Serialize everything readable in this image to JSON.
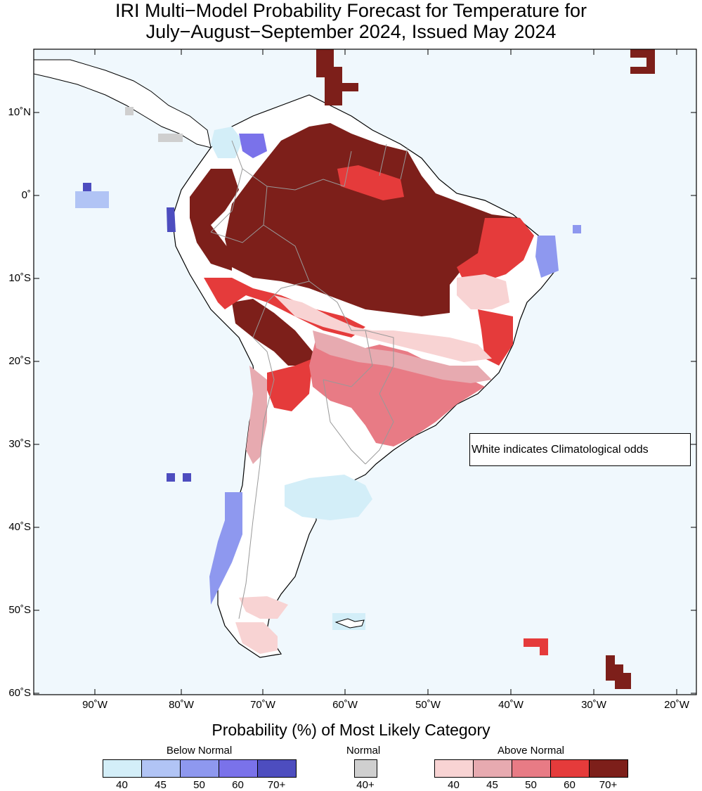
{
  "title": {
    "line1": "IRI Multi−Model Probability Forecast for Temperature for",
    "line2": "July−August−September 2024, Issued May 2024"
  },
  "note": "White indicates Climatological odds",
  "axes": {
    "lon_labels": [
      "90˚W",
      "80˚W",
      "70˚W",
      "60˚W",
      "50˚W",
      "40˚W",
      "30˚W",
      "20˚W"
    ],
    "lat_labels": [
      "10˚N",
      "0˚",
      "10˚S",
      "20˚S",
      "30˚S",
      "40˚S",
      "50˚S",
      "60˚S"
    ]
  },
  "legend": {
    "title": "Probability (%) of Most Likely Category",
    "below": {
      "label": "Below Normal",
      "ticks": [
        "40",
        "45",
        "50",
        "60",
        "70+"
      ],
      "colors": [
        "#d3eef8",
        "#b1c4f5",
        "#8e98ef",
        "#7a72ea",
        "#4d4dbf"
      ]
    },
    "normal": {
      "label": "Normal",
      "ticks": [
        "40+"
      ],
      "colors": [
        "#cfcfcf"
      ]
    },
    "above": {
      "label": "Above Normal",
      "ticks": [
        "40",
        "45",
        "50",
        "60",
        "70+"
      ],
      "colors": [
        "#f8d3d3",
        "#e7aab0",
        "#e87b85",
        "#e53b3b",
        "#7d1f1a"
      ]
    }
  },
  "colors": {
    "ocean": "#f0f8fd",
    "land_climatology": "#ffffff",
    "coast": "#000000",
    "border": "#999999"
  }
}
